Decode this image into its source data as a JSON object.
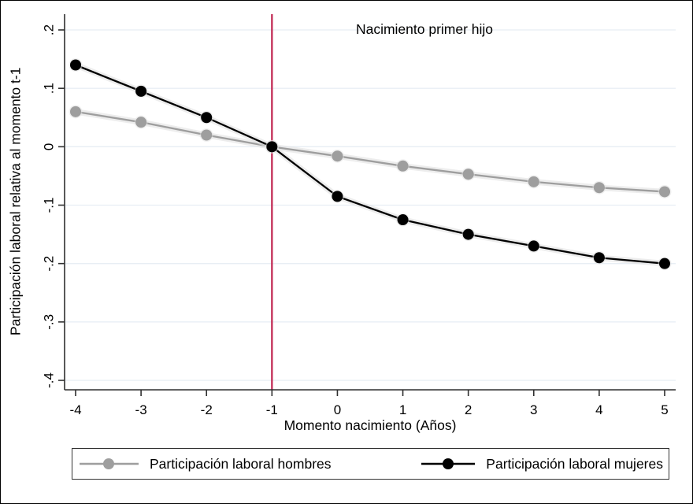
{
  "figure_title": "Nacimiento primer hijo",
  "chart_data": {
    "type": "line",
    "title": "Nacimiento primer hijo",
    "xlabel": "Momento nacimiento (Años)",
    "ylabel": "Participación laboral relativa al momento t-1",
    "x": [
      -4,
      -3,
      -2,
      -1,
      0,
      1,
      2,
      3,
      4,
      5
    ],
    "series": [
      {
        "name": "Participación laboral hombres",
        "color": "#9e9e9e",
        "marker": "circle",
        "values": [
          0.06,
          0.042,
          0.02,
          0,
          -0.016,
          -0.033,
          -0.047,
          -0.06,
          -0.07,
          -0.077
        ]
      },
      {
        "name": "Participación laboral mujeres",
        "color": "#000000",
        "marker": "circle",
        "values": [
          0.14,
          0.095,
          0.05,
          0,
          -0.085,
          -0.125,
          -0.15,
          -0.17,
          -0.19,
          -0.2
        ]
      }
    ],
    "x_tick_labels": [
      "-4",
      "-3",
      "-2",
      "-1",
      "0",
      "1",
      "2",
      "3",
      "4",
      "5"
    ],
    "y_ticks": [
      0.2,
      0.1,
      0,
      -0.1,
      -0.2,
      -0.3,
      -0.4
    ],
    "y_tick_labels": [
      ".2",
      ".1",
      "0",
      "-.1",
      "-.2",
      "-.3",
      "-.4"
    ],
    "xlim": [
      -4.17,
      5.17
    ],
    "ylim": [
      -0.417,
      0.227
    ],
    "grid": true,
    "legend_position": "bottom",
    "event_line_x": -1,
    "event_line_color": "#c22b55",
    "grid_color": "#e8eef4",
    "axis_color": "#2f2f2f"
  }
}
